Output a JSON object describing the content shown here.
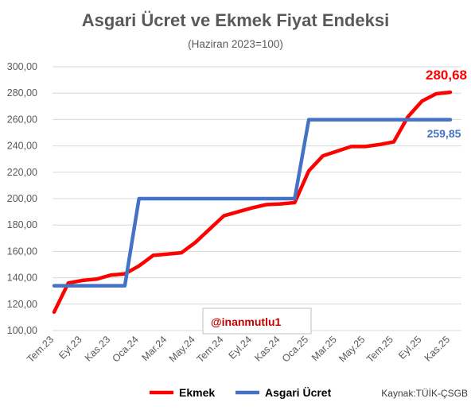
{
  "chart_data": {
    "type": "line",
    "title": "Asgari Ücret ve Ekmek Fiyat Endeksi",
    "subtitle": "(Haziran 2023=100)",
    "xlabel": "",
    "ylabel": "",
    "ylim": [
      100,
      300
    ],
    "yticks": [
      "100,00",
      "120,00",
      "140,00",
      "160,00",
      "180,00",
      "200,00",
      "220,00",
      "240,00",
      "260,00",
      "280,00",
      "300,00"
    ],
    "grid": true,
    "legend_position": "bottom",
    "categories": [
      "Tem.23",
      "Ağu.23",
      "Eyl.23",
      "Eki.23",
      "Kas.23",
      "Ara.23",
      "Oca.24",
      "Şub.24",
      "Mar.24",
      "Nis.24",
      "May.24",
      "Haz.24",
      "Tem.24",
      "Ağu.24",
      "Eyl.24",
      "Eki.24",
      "Kas.24",
      "Ara.24",
      "Oca.25",
      "Şub.25",
      "Mar.25",
      "Nis.25",
      "May.25",
      "Haz.25",
      "Tem.25",
      "Ağu.25",
      "Eyl.25",
      "Eki.25",
      "Kas.25"
    ],
    "xtick_labels": [
      "Tem.23",
      "Eyl.23",
      "Kas.23",
      "Oca.24",
      "Mar.24",
      "May.24",
      "Tem.24",
      "Eyl.24",
      "Kas.24",
      "Oca.25",
      "Mar.25",
      "May.25",
      "Tem.25",
      "Eyl.25",
      "Kas.25"
    ],
    "series": [
      {
        "name": "Ekmek",
        "color": "#ff0000",
        "values": [
          114,
          136,
          138,
          139,
          142,
          143,
          149,
          157,
          158,
          159,
          167,
          177,
          187,
          190,
          193,
          195.5,
          196,
          197,
          221,
          232.5,
          236,
          239.5,
          239.5,
          241,
          243,
          262,
          274,
          279.5,
          280.68
        ]
      },
      {
        "name": "Asgari Ücret",
        "color": "#4472c4",
        "values": [
          134,
          134,
          134,
          134,
          134,
          134,
          200,
          200,
          200,
          200,
          200,
          200,
          200,
          200,
          200,
          200,
          200,
          200,
          259.85,
          259.85,
          259.85,
          259.85,
          259.85,
          259.85,
          259.85,
          259.85,
          259.85,
          259.85,
          259.85
        ]
      }
    ],
    "annotations": {
      "ekmek_last": "280,68",
      "asgari_last": "259,85"
    }
  },
  "watermark": "@inanmutlu1",
  "source": "Kaynak:TÜİK-ÇSGB"
}
